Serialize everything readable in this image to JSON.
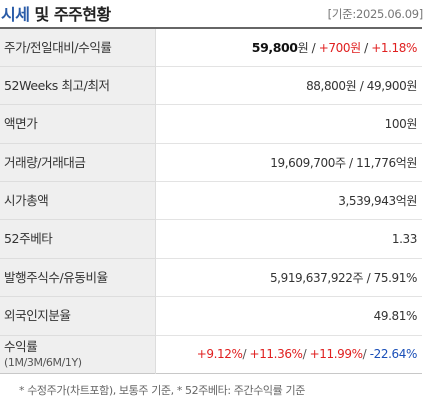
{
  "header": {
    "title_part1": "시세",
    "title_part2": " 및 주주현황",
    "base_date": "[기준:2025.06.09]"
  },
  "rows": {
    "price": {
      "label": "주가/전일대비/수익률",
      "price_value": "59,800",
      "price_unit": "원 / ",
      "change": "+700원",
      "sep": " / ",
      "rate": "+1.18%"
    },
    "week52": {
      "label": "52Weeks 최고/최저",
      "value": "88,800원 / 49,900원"
    },
    "face": {
      "label": "액면가",
      "value": "100원"
    },
    "volume": {
      "label": "거래량/거래대금",
      "value": "19,609,700주 / 11,776억원"
    },
    "marketcap": {
      "label": "시가총액",
      "value": "3,539,943억원"
    },
    "beta": {
      "label": "52주베타",
      "value": "1.33"
    },
    "shares": {
      "label": "발행주식수/유동비율",
      "value": "5,919,637,922주 / 75.91%"
    },
    "foreign": {
      "label": "외국인지분율",
      "value": "49.81%"
    },
    "returns": {
      "label": "수익률",
      "sublabel": "(1M/3M/6M/1Y)",
      "r1m": "+9.12%",
      "s1": "/ ",
      "r3m": "+11.36%",
      "s2": "/ ",
      "r6m": "+11.99%",
      "s3": "/ ",
      "r1y": "-22.64%"
    }
  },
  "footnote": "* 수정주가(차트포함), 보통주 기준, * 52주베타: 주간수익률 기준",
  "colors": {
    "up": "#e02020",
    "down": "#1a4fb8",
    "title_accent": "#2a5ca8"
  }
}
